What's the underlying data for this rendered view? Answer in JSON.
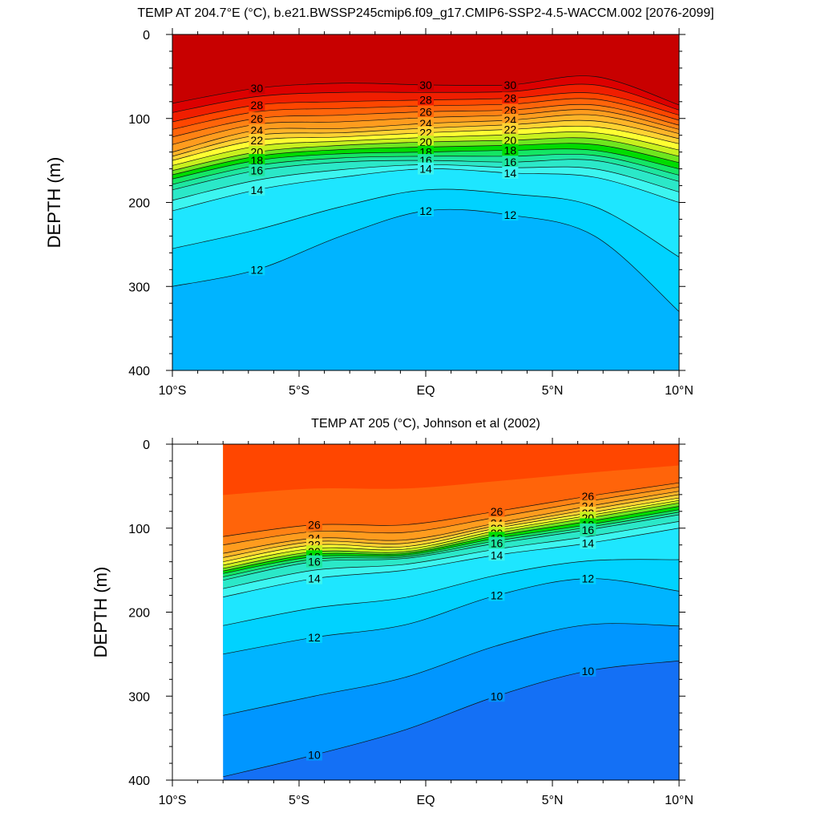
{
  "chart_data": [
    {
      "type": "contour",
      "title": "TEMP AT 204.7°E (°C), b.e21.BWSSP245cmip6.f09_g17.CMIP6-SSP2-4.5-WACCM.002 [2076-2099]",
      "xlabel": "",
      "ylabel": "DEPTH (m)",
      "xlim": [
        -10,
        10
      ],
      "ylim": [
        400,
        0
      ],
      "x_ticks": [
        -10,
        -5,
        0,
        5,
        10
      ],
      "x_tick_labels": [
        "10°S",
        "5°S",
        "EQ",
        "5°N",
        "10°N"
      ],
      "y_ticks": [
        0,
        100,
        200,
        300,
        400
      ],
      "y_tick_labels": [
        "0",
        "100",
        "200",
        "300",
        "400"
      ],
      "data_x_range": [
        -10,
        10
      ],
      "contour_interval": 1,
      "contour_label_values": [
        "30",
        "28",
        "26",
        "24",
        "22",
        "20",
        "18",
        "16",
        "14",
        "12"
      ],
      "isotherms": [
        {
          "level": 12,
          "depth": [
            300,
            280,
            240,
            210,
            215,
            240,
            330
          ]
        },
        {
          "level": 14,
          "depth": [
            210,
            185,
            170,
            160,
            165,
            170,
            200
          ]
        },
        {
          "level": 16,
          "depth": [
            185,
            162,
            152,
            150,
            152,
            150,
            175
          ]
        },
        {
          "level": 18,
          "depth": [
            172,
            150,
            142,
            140,
            138,
            138,
            160
          ]
        },
        {
          "level": 20,
          "depth": [
            162,
            140,
            132,
            128,
            126,
            124,
            145
          ]
        },
        {
          "level": 22,
          "depth": [
            150,
            126,
            122,
            117,
            113,
            110,
            130
          ]
        },
        {
          "level": 24,
          "depth": [
            140,
            114,
            112,
            106,
            102,
            96,
            118
          ]
        },
        {
          "level": 26,
          "depth": [
            122,
            100,
            96,
            92,
            90,
            84,
            108
          ]
        },
        {
          "level": 28,
          "depth": [
            104,
            84,
            80,
            78,
            76,
            70,
            96
          ]
        },
        {
          "level": 30,
          "depth": [
            82,
            64,
            58,
            60,
            60,
            50,
            84
          ]
        }
      ]
    },
    {
      "type": "contour",
      "title": "TEMP AT 205 (°C), Johnson et al (2002)",
      "xlabel": "",
      "ylabel": "DEPTH (m)",
      "xlim": [
        -10,
        10
      ],
      "ylim": [
        400,
        0
      ],
      "x_ticks": [
        -10,
        -5,
        0,
        5,
        10
      ],
      "x_tick_labels": [
        "10°S",
        "5°S",
        "EQ",
        "5°N",
        "10°N"
      ],
      "y_ticks": [
        0,
        100,
        200,
        300,
        400
      ],
      "y_tick_labels": [
        "0",
        "100",
        "200",
        "300",
        "400"
      ],
      "data_x_range": [
        -8,
        10
      ],
      "contour_interval": 1,
      "contour_label_values": [
        "26",
        "24",
        "22",
        "20",
        "18",
        "16",
        "14",
        "12",
        "10"
      ],
      "isotherms": [
        {
          "level": 10,
          "depth": [
            396,
            370,
            340,
            300,
            270,
            258
          ]
        },
        {
          "level": 12,
          "depth": [
            250,
            230,
            215,
            180,
            160,
            175
          ]
        },
        {
          "level": 14,
          "depth": [
            182,
            160,
            150,
            132,
            118,
            100
          ]
        },
        {
          "level": 16,
          "depth": [
            162,
            140,
            136,
            118,
            102,
            84
          ]
        },
        {
          "level": 18,
          "depth": [
            154,
            134,
            132,
            112,
            96,
            78
          ]
        },
        {
          "level": 20,
          "depth": [
            148,
            128,
            128,
            106,
            88,
            70
          ]
        },
        {
          "level": 22,
          "depth": [
            140,
            120,
            122,
            100,
            82,
            64
          ]
        },
        {
          "level": 24,
          "depth": [
            130,
            112,
            114,
            94,
            74,
            56
          ]
        },
        {
          "level": 26,
          "depth": [
            110,
            96,
            96,
            80,
            62,
            46
          ]
        }
      ]
    }
  ]
}
